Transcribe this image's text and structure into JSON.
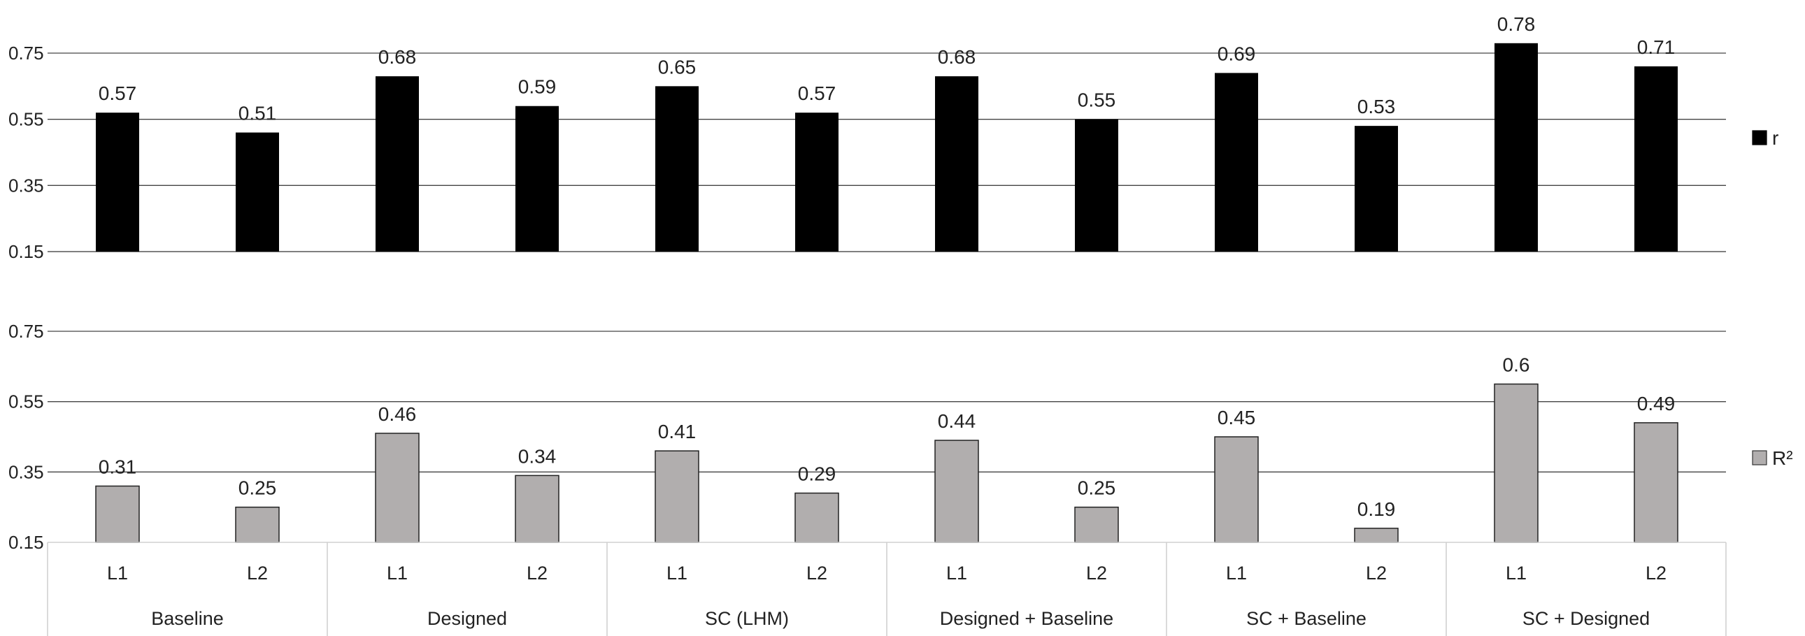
{
  "chart_data": [
    {
      "type": "bar",
      "groups": [
        "Baseline",
        "Designed",
        "SC (LHM)",
        "Designed + Baseline",
        "SC + Baseline",
        "SC + Designed"
      ],
      "sub_categories": [
        "L1",
        "L2"
      ],
      "series": [
        {
          "name": "r",
          "color": "#000000",
          "values": [
            0.57,
            0.51,
            0.68,
            0.59,
            0.65,
            0.57,
            0.68,
            0.55,
            0.69,
            0.53,
            0.78,
            0.71
          ],
          "labels": [
            "0.57",
            "0.51",
            "0.68",
            "0.59",
            "0.65",
            "0.57",
            "0.68",
            "0.55",
            "0.69",
            "0.53",
            "0.78",
            "0.71"
          ]
        }
      ],
      "yticks": [
        "0.15",
        "0.35",
        "0.55",
        "0.75"
      ],
      "ylim": [
        0.15,
        0.75
      ],
      "legend": "right",
      "grid": true
    },
    {
      "type": "bar",
      "groups": [
        "Baseline",
        "Designed",
        "SC (LHM)",
        "Designed + Baseline",
        "SC + Baseline",
        "SC + Designed"
      ],
      "sub_categories": [
        "L1",
        "L2"
      ],
      "series": [
        {
          "name": "R²",
          "color": "#b1aeae",
          "values": [
            0.31,
            0.25,
            0.46,
            0.34,
            0.41,
            0.29,
            0.44,
            0.25,
            0.45,
            0.19,
            0.6,
            0.49
          ],
          "labels": [
            "0.31",
            "0.25",
            "0.46",
            "0.34",
            "0.41",
            "0.29",
            "0.44",
            "0.25",
            "0.45",
            "0.19",
            "0.6",
            "0.49"
          ]
        }
      ],
      "yticks": [
        "0.15",
        "0.35",
        "0.55",
        "0.75"
      ],
      "ylim": [
        0.15,
        0.75
      ],
      "legend": "right",
      "grid": true
    }
  ]
}
